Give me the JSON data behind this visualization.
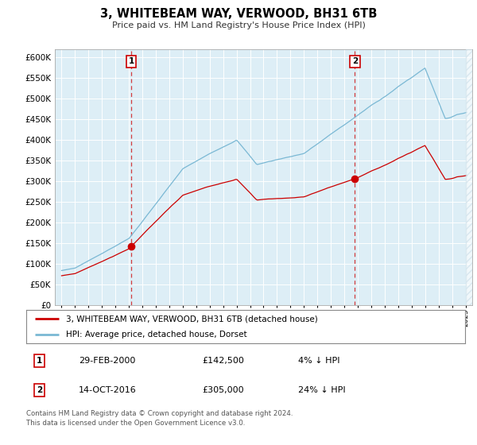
{
  "title": "3, WHITEBEAM WAY, VERWOOD, BH31 6TB",
  "subtitle": "Price paid vs. HM Land Registry's House Price Index (HPI)",
  "legend_label_red": "3, WHITEBEAM WAY, VERWOOD, BH31 6TB (detached house)",
  "legend_label_blue": "HPI: Average price, detached house, Dorset",
  "sale1_date": "29-FEB-2000",
  "sale1_price": "£142,500",
  "sale1_hpi": "4% ↓ HPI",
  "sale2_date": "14-OCT-2016",
  "sale2_price": "£305,000",
  "sale2_hpi": "24% ↓ HPI",
  "footer": "Contains HM Land Registry data © Crown copyright and database right 2024.\nThis data is licensed under the Open Government Licence v3.0.",
  "ylim": [
    0,
    620000
  ],
  "yticks": [
    0,
    50000,
    100000,
    150000,
    200000,
    250000,
    300000,
    350000,
    400000,
    450000,
    500000,
    550000,
    600000
  ],
  "sale1_year": 2000.17,
  "sale1_value": 142500,
  "sale2_year": 2016.79,
  "sale2_value": 305000,
  "xlim_left": 1994.5,
  "xlim_right": 2025.5,
  "data_end_year": 2025.0,
  "background_color": "#ddeef6",
  "red_color": "#cc0000",
  "blue_color": "#7ab8d4",
  "hatch_color": "#c8dde8"
}
